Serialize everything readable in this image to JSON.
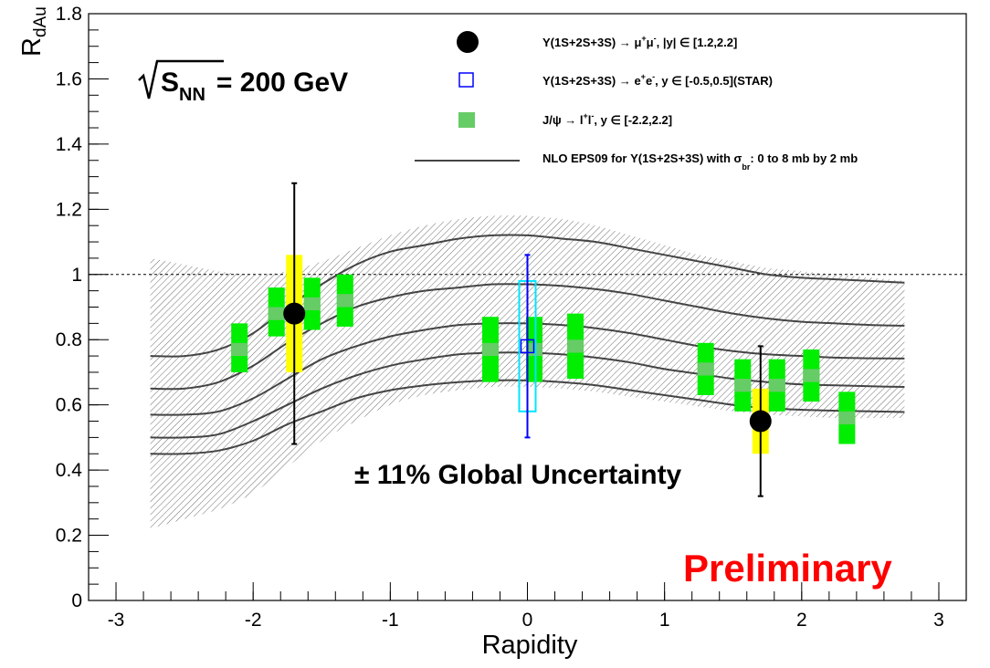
{
  "chart_data": {
    "type": "scatter",
    "title": "",
    "xlabel": "Rapidity",
    "ylabel": "R_dAu",
    "ylabel_main": "R",
    "ylabel_sub": "dAu",
    "xlim": [
      -3.2,
      3.2
    ],
    "ylim": [
      0,
      1.8
    ],
    "x_ticks": [
      -3,
      -2,
      -1,
      0,
      1,
      2,
      3
    ],
    "x_tick_labels": [
      "-3",
      "-2",
      "-1",
      "0",
      "1",
      "2",
      "3"
    ],
    "y_ticks": [
      0,
      0.2,
      0.4,
      0.6,
      0.8,
      1,
      1.2,
      1.4,
      1.6,
      1.8
    ],
    "y_tick_labels": [
      "0",
      "0.2",
      "0.4",
      "0.6",
      "0.8",
      "1",
      "1.2",
      "1.4",
      "1.6",
      "1.8"
    ],
    "reference_line": 1.0,
    "grid": false,
    "legend_position": "top-right",
    "series": [
      {
        "name": "Υ(1S+2S+3S) → μ⁺μ⁻, |y| ∈ [1.2,2.2]",
        "marker": "filled-circle",
        "color": "#000000",
        "syst_color": "#ffff00",
        "points": [
          {
            "x": -1.7,
            "y": 0.88,
            "stat_lo": 0.48,
            "stat_hi": 1.28,
            "syst_lo": 0.7,
            "syst_hi": 1.06
          },
          {
            "x": 1.7,
            "y": 0.55,
            "stat_lo": 0.32,
            "stat_hi": 0.78,
            "syst_lo": 0.45,
            "syst_hi": 0.65
          }
        ]
      },
      {
        "name": "Υ(1S+2S+3S) → e⁺e⁻, y ∈ [-0.5,0.5](STAR)",
        "marker": "open-square",
        "color": "#0000ff",
        "syst_color": "#00e5ff",
        "points": [
          {
            "x": 0.0,
            "y": 0.78,
            "stat_lo": 0.5,
            "stat_hi": 1.06,
            "syst_lo": 0.58,
            "syst_hi": 0.98
          }
        ]
      },
      {
        "name": "J/ψ → l⁺l⁻, y ∈ [-2.2,2.2]",
        "marker": "box",
        "color": "#66cc66",
        "syst_color": "#00ee00",
        "points": [
          {
            "x": -2.1,
            "y": 0.77,
            "syst_lo": 0.7,
            "syst_hi": 0.85
          },
          {
            "x": -1.83,
            "y": 0.88,
            "syst_lo": 0.81,
            "syst_hi": 0.96
          },
          {
            "x": -1.57,
            "y": 0.91,
            "syst_lo": 0.83,
            "syst_hi": 0.99
          },
          {
            "x": -1.33,
            "y": 0.92,
            "syst_lo": 0.84,
            "syst_hi": 1.0
          },
          {
            "x": -0.27,
            "y": 0.77,
            "syst_lo": 0.67,
            "syst_hi": 0.87
          },
          {
            "x": 0.05,
            "y": 0.77,
            "syst_lo": 0.67,
            "syst_hi": 0.87
          },
          {
            "x": 0.35,
            "y": 0.78,
            "syst_lo": 0.68,
            "syst_hi": 0.88
          },
          {
            "x": 1.3,
            "y": 0.71,
            "syst_lo": 0.63,
            "syst_hi": 0.79
          },
          {
            "x": 1.57,
            "y": 0.66,
            "syst_lo": 0.58,
            "syst_hi": 0.74
          },
          {
            "x": 1.82,
            "y": 0.66,
            "syst_lo": 0.58,
            "syst_hi": 0.74
          },
          {
            "x": 2.07,
            "y": 0.69,
            "syst_lo": 0.61,
            "syst_hi": 0.77
          },
          {
            "x": 2.33,
            "y": 0.56,
            "syst_lo": 0.48,
            "syst_hi": 0.64
          }
        ]
      }
    ],
    "model": {
      "name": "NLO EPS09 for Υ(1S+2S+3S) with σ_br: 0 to 8 mb by 2 mb",
      "color": "#444444",
      "band_color": "#666666",
      "x": [
        -2.75,
        -2.5,
        -2.25,
        -2.0,
        -1.75,
        -1.5,
        -1.25,
        -1.0,
        -0.75,
        -0.5,
        -0.25,
        0.0,
        0.25,
        0.5,
        0.75,
        1.0,
        1.25,
        1.5,
        1.75,
        2.0,
        2.25,
        2.5,
        2.75
      ],
      "curves": [
        {
          "sigma_br": 0,
          "y": [
            0.75,
            0.75,
            0.77,
            0.82,
            0.9,
            0.97,
            1.03,
            1.07,
            1.09,
            1.11,
            1.12,
            1.12,
            1.11,
            1.1,
            1.08,
            1.06,
            1.04,
            1.02,
            1.0,
            0.99,
            0.985,
            0.98,
            0.975
          ]
        },
        {
          "sigma_br": 2,
          "y": [
            0.65,
            0.65,
            0.67,
            0.72,
            0.79,
            0.85,
            0.9,
            0.93,
            0.95,
            0.96,
            0.97,
            0.97,
            0.965,
            0.955,
            0.94,
            0.92,
            0.9,
            0.88,
            0.865,
            0.855,
            0.85,
            0.845,
            0.843
          ]
        },
        {
          "sigma_br": 4,
          "y": [
            0.57,
            0.57,
            0.58,
            0.62,
            0.68,
            0.74,
            0.78,
            0.81,
            0.83,
            0.845,
            0.85,
            0.85,
            0.845,
            0.835,
            0.82,
            0.8,
            0.78,
            0.765,
            0.755,
            0.75,
            0.745,
            0.743,
            0.742
          ]
        },
        {
          "sigma_br": 6,
          "y": [
            0.5,
            0.5,
            0.51,
            0.55,
            0.6,
            0.65,
            0.69,
            0.72,
            0.74,
            0.755,
            0.76,
            0.76,
            0.755,
            0.745,
            0.73,
            0.71,
            0.695,
            0.68,
            0.67,
            0.663,
            0.66,
            0.657,
            0.655
          ]
        },
        {
          "sigma_br": 8,
          "y": [
            0.45,
            0.45,
            0.46,
            0.49,
            0.54,
            0.58,
            0.62,
            0.645,
            0.66,
            0.67,
            0.675,
            0.675,
            0.67,
            0.66,
            0.645,
            0.63,
            0.615,
            0.6,
            0.59,
            0.585,
            0.582,
            0.58,
            0.578
          ]
        }
      ],
      "band_upper": [
        1.05,
        1.03,
        1.01,
        1.0,
        1.01,
        1.04,
        1.08,
        1.12,
        1.15,
        1.17,
        1.18,
        1.18,
        1.17,
        1.15,
        1.12,
        1.09,
        1.06,
        1.04,
        1.02,
        1.01,
        1.0,
        0.99,
        0.98
      ],
      "band_lower": [
        0.22,
        0.25,
        0.28,
        0.33,
        0.41,
        0.49,
        0.55,
        0.6,
        0.63,
        0.645,
        0.655,
        0.655,
        0.65,
        0.64,
        0.625,
        0.61,
        0.595,
        0.58,
        0.57,
        0.565,
        0.56,
        0.56,
        0.56
      ]
    },
    "annotations": {
      "sqrt_s_main": "S",
      "sqrt_s_sub": "NN",
      "sqrt_s_value": "= 200 GeV",
      "global_uncertainty": "± 11% Global Uncertainty",
      "preliminary": "Preliminary"
    },
    "legend": {
      "entry1": {
        "a": "Υ(1S+2S+3S)  → μ",
        "a_sup": "+",
        "b": "μ",
        "b_sup": "-",
        "c": ", |y| ∈ [1.2,2.2]"
      },
      "entry2": {
        "a": "Υ(1S+2S+3S)  → e",
        "a_sup": "+",
        "b": "e",
        "b_sup": "-",
        "c": ", y ∈ [-0.5,0.5](STAR)"
      },
      "entry3": {
        "a": "J/ψ → l",
        "a_sup": "+",
        "b": "l",
        "b_sup": "-",
        "c": ", y ∈ [-2.2,2.2]"
      },
      "entry4": {
        "a": "NLO EPS09 for  Υ(1S+2S+3S) with  σ",
        "a_sub": "br",
        "c": ": 0 to 8 mb by 2 mb"
      }
    }
  }
}
